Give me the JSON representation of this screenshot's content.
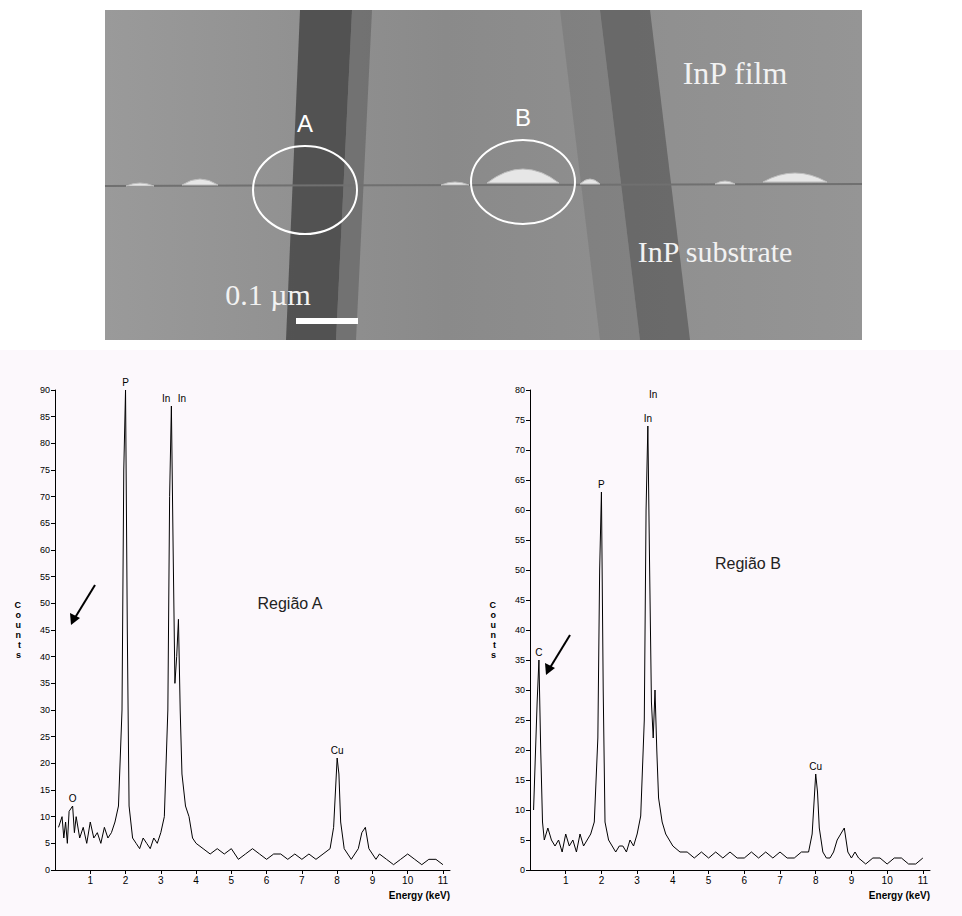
{
  "micrograph": {
    "labels": {
      "film": "InP film",
      "substrate": "InP substrate",
      "region_a": "A",
      "region_b": "B",
      "scale_bar": "0.1 µm"
    }
  },
  "chart_data": [
    {
      "type": "line",
      "title": "Região A",
      "x_label": "Energy (keV)",
      "y_label": "Counts",
      "color": "#000000",
      "grid": false,
      "xlim": [
        0,
        11.2
      ],
      "xticks": [
        1,
        2,
        3,
        4,
        5,
        6,
        7,
        8,
        9,
        10,
        11
      ],
      "ylim": [
        0,
        90
      ],
      "yticks": [
        0,
        5,
        10,
        15,
        20,
        25,
        30,
        35,
        40,
        45,
        50,
        55,
        60,
        65,
        70,
        75,
        80,
        85,
        90
      ],
      "x": [
        0.1,
        0.2,
        0.25,
        0.3,
        0.35,
        0.4,
        0.5,
        0.55,
        0.6,
        0.7,
        0.8,
        0.9,
        1.0,
        1.1,
        1.2,
        1.3,
        1.4,
        1.5,
        1.6,
        1.7,
        1.8,
        1.9,
        1.95,
        2.0,
        2.05,
        2.1,
        2.2,
        2.3,
        2.4,
        2.5,
        2.6,
        2.7,
        2.8,
        2.9,
        3.0,
        3.1,
        3.2,
        3.25,
        3.3,
        3.35,
        3.4,
        3.45,
        3.5,
        3.55,
        3.6,
        3.7,
        3.8,
        3.9,
        4.0,
        4.2,
        4.4,
        4.6,
        4.8,
        5.0,
        5.2,
        5.4,
        5.6,
        5.8,
        6.0,
        6.2,
        6.4,
        6.6,
        6.8,
        7.0,
        7.2,
        7.4,
        7.6,
        7.8,
        7.9,
        8.0,
        8.05,
        8.1,
        8.2,
        8.3,
        8.4,
        8.5,
        8.6,
        8.7,
        8.8,
        8.9,
        9.0,
        9.1,
        9.2,
        9.4,
        9.6,
        9.8,
        10.0,
        10.2,
        10.4,
        10.6,
        10.8,
        11.0
      ],
      "values": [
        8,
        10,
        6,
        9,
        5,
        11,
        12,
        7,
        10,
        6,
        8,
        5,
        9,
        6,
        7,
        5,
        8,
        6,
        7,
        9,
        12,
        30,
        75,
        90,
        45,
        12,
        6,
        5,
        4,
        6,
        5,
        4,
        6,
        5,
        7,
        10,
        30,
        70,
        87,
        60,
        35,
        40,
        47,
        30,
        18,
        12,
        10,
        6,
        5,
        4,
        3,
        4,
        3,
        4,
        2,
        3,
        4,
        3,
        2,
        3,
        3,
        2,
        3,
        2,
        3,
        2,
        3,
        4,
        8,
        21,
        18,
        9,
        4,
        3,
        2,
        3,
        4,
        7,
        8,
        4,
        3,
        2,
        3,
        2,
        1,
        2,
        3,
        2,
        1,
        2,
        2,
        1
      ],
      "annotations": [
        {
          "text": "O",
          "x": 0.5,
          "y": 12
        },
        {
          "text": "P",
          "x": 2.0,
          "y": 90
        },
        {
          "text": "In",
          "x": 3.15,
          "y": 87
        },
        {
          "text": "In",
          "x": 3.6,
          "y": 87
        },
        {
          "text": "Cu",
          "x": 8.0,
          "y": 21
        }
      ]
    },
    {
      "type": "line",
      "title": "Região B",
      "x_label": "Energy (keV)",
      "y_label": "Counts",
      "color": "#000000",
      "grid": false,
      "xlim": [
        0,
        11.2
      ],
      "xticks": [
        1,
        2,
        3,
        4,
        5,
        6,
        7,
        8,
        9,
        10,
        11
      ],
      "ylim": [
        0,
        80
      ],
      "yticks": [
        0,
        5,
        10,
        15,
        20,
        25,
        30,
        35,
        40,
        45,
        50,
        55,
        60,
        65,
        70,
        75,
        80
      ],
      "x": [
        0.1,
        0.2,
        0.25,
        0.3,
        0.35,
        0.4,
        0.5,
        0.55,
        0.6,
        0.7,
        0.8,
        0.9,
        1.0,
        1.1,
        1.2,
        1.3,
        1.4,
        1.5,
        1.6,
        1.7,
        1.8,
        1.9,
        1.95,
        2.0,
        2.05,
        2.1,
        2.2,
        2.3,
        2.4,
        2.5,
        2.6,
        2.7,
        2.8,
        2.9,
        3.0,
        3.1,
        3.2,
        3.25,
        3.3,
        3.35,
        3.4,
        3.45,
        3.5,
        3.55,
        3.6,
        3.7,
        3.8,
        3.9,
        4.0,
        4.2,
        4.4,
        4.6,
        4.8,
        5.0,
        5.2,
        5.4,
        5.6,
        5.8,
        6.0,
        6.2,
        6.4,
        6.6,
        6.8,
        7.0,
        7.2,
        7.4,
        7.6,
        7.8,
        7.9,
        8.0,
        8.05,
        8.1,
        8.2,
        8.3,
        8.4,
        8.5,
        8.6,
        8.7,
        8.8,
        8.9,
        9.0,
        9.1,
        9.2,
        9.4,
        9.6,
        9.8,
        10.0,
        10.2,
        10.4,
        10.6,
        10.8,
        11.0
      ],
      "values": [
        10,
        28,
        35,
        20,
        8,
        5,
        7,
        6,
        5,
        4,
        5,
        3,
        6,
        4,
        5,
        3,
        6,
        4,
        5,
        6,
        8,
        22,
        50,
        63,
        30,
        8,
        5,
        4,
        3,
        4,
        4,
        3,
        5,
        4,
        6,
        9,
        25,
        60,
        74,
        50,
        28,
        22,
        30,
        20,
        12,
        8,
        6,
        5,
        4,
        3,
        3,
        2,
        3,
        2,
        3,
        2,
        3,
        2,
        2,
        3,
        2,
        3,
        2,
        3,
        2,
        2,
        3,
        3,
        6,
        16,
        13,
        7,
        3,
        2,
        2,
        3,
        5,
        6,
        7,
        3,
        2,
        3,
        2,
        1,
        2,
        2,
        1,
        2,
        2,
        1,
        1,
        2
      ],
      "annotations": [
        {
          "text": "C",
          "x": 0.25,
          "y": 35
        },
        {
          "text": "P",
          "x": 2.0,
          "y": 63
        },
        {
          "text": "In",
          "x": 3.3,
          "y": 74
        },
        {
          "text": "In",
          "x": 3.45,
          "y": 78
        },
        {
          "text": "Cu",
          "x": 8.0,
          "y": 16
        }
      ]
    }
  ]
}
